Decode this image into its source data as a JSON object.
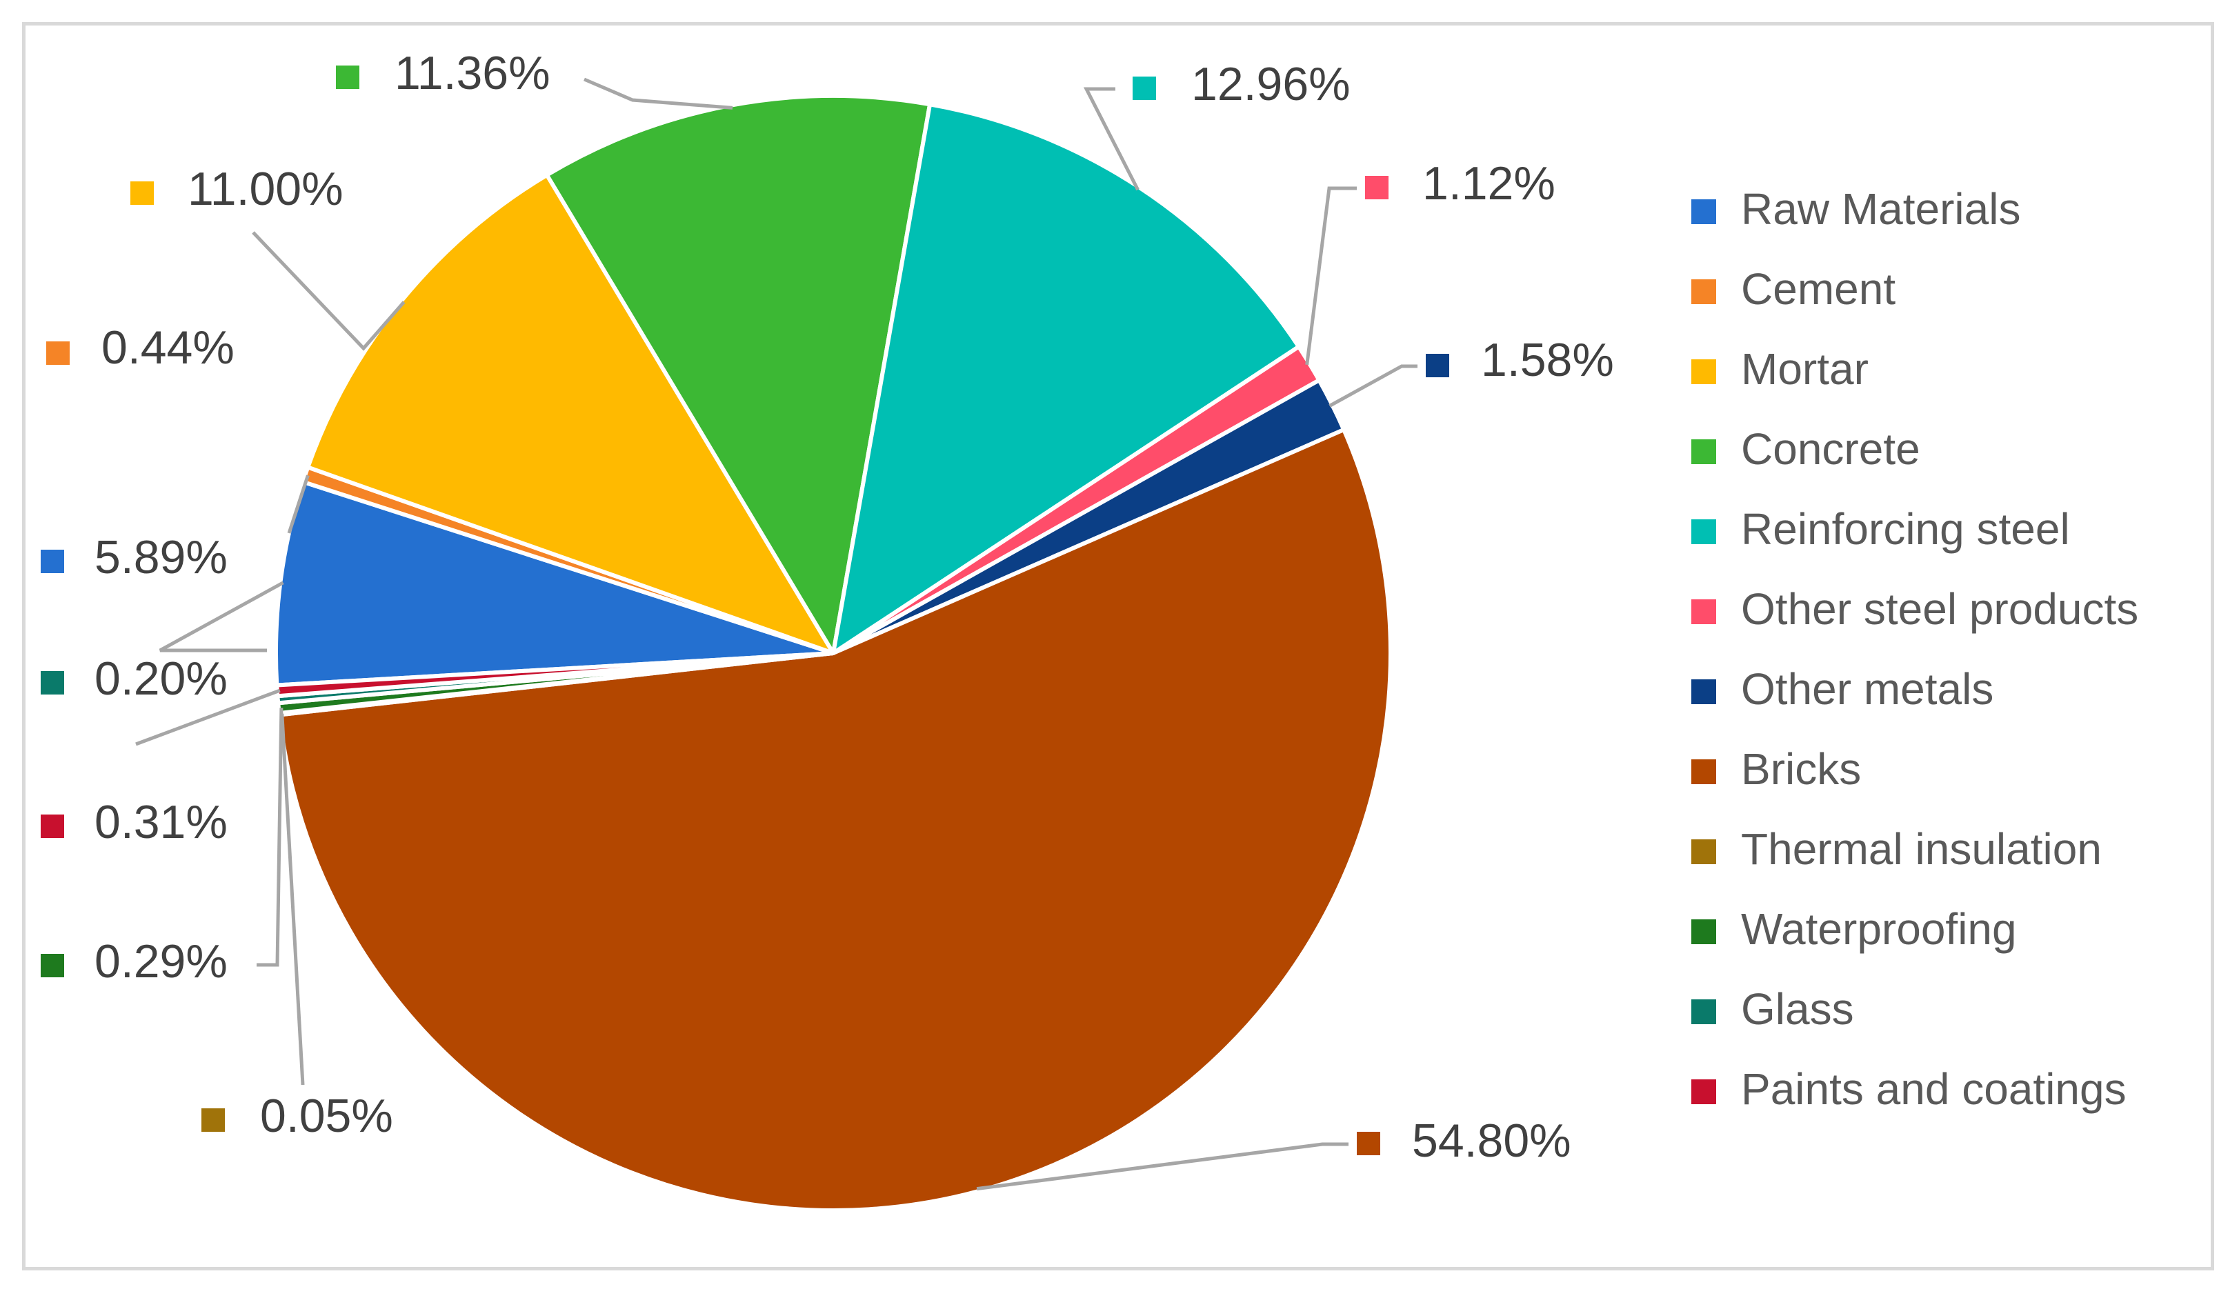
{
  "chart_data": {
    "type": "pie",
    "title": "",
    "legend_position": "right",
    "data_labels": "outside with leader lines and color markers",
    "slices": [
      {
        "name": "Raw Materials",
        "value": 5.89,
        "label": "5.89%",
        "color": "#2470D0"
      },
      {
        "name": "Cement",
        "value": 0.44,
        "label": "0.44%",
        "color": "#F58426"
      },
      {
        "name": "Mortar",
        "value": 11.0,
        "label": "11.00%",
        "color": "#FFBA00"
      },
      {
        "name": "Concrete",
        "value": 11.36,
        "label": "11.36%",
        "color": "#3CB834"
      },
      {
        "name": "Reinforcing steel",
        "value": 12.96,
        "label": "12.96%",
        "color": "#00BFB3"
      },
      {
        "name": "Other steel products",
        "value": 1.12,
        "label": "1.12%",
        "color": "#FF4D6A"
      },
      {
        "name": "Other metals",
        "value": 1.58,
        "label": "1.58%",
        "color": "#0B3F86"
      },
      {
        "name": "Bricks",
        "value": 54.8,
        "label": "54.80%",
        "color": "#B34700"
      },
      {
        "name": "Thermal insulation",
        "value": 0.05,
        "label": "0.05%",
        "color": "#A0730A"
      },
      {
        "name": "Waterproofing",
        "value": 0.29,
        "label": "0.29%",
        "color": "#1E7A1E"
      },
      {
        "name": "Glass",
        "value": 0.2,
        "label": "0.20%",
        "color": "#0A7A6A"
      },
      {
        "name": "Paints and coatings",
        "value": 0.31,
        "label": "0.31%",
        "color": "#C8102E"
      }
    ]
  }
}
